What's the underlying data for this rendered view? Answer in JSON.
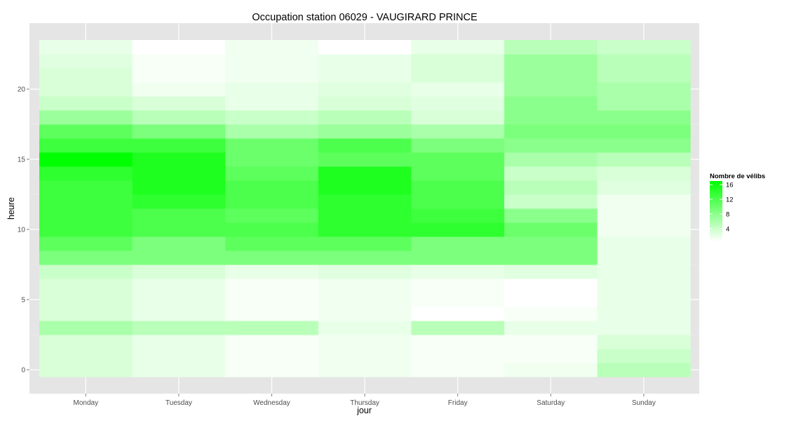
{
  "chart_data": {
    "type": "heatmap",
    "title": "Occupation station 06029 - VAUGIRARD PRINCE",
    "xlabel": "jour",
    "ylabel": "heure",
    "categories": [
      "Monday",
      "Tuesday",
      "Wednesday",
      "Thursday",
      "Friday",
      "Saturday",
      "Sunday"
    ],
    "y_ticks": [
      0,
      5,
      10,
      15,
      20
    ],
    "ylim": [
      -0.5,
      23.5
    ],
    "grid": true,
    "colors": {
      "low": "#ffffff",
      "high": "#00ff00",
      "panel": "#e5e5e5",
      "grid": "#ffffff"
    },
    "legend": {
      "title": "Nombre de vélibs",
      "position": "right",
      "min": 0.5,
      "max": 17,
      "breaks": [
        16,
        12,
        8,
        4
      ]
    },
    "hours": [
      0,
      1,
      2,
      3,
      4,
      5,
      6,
      7,
      8,
      9,
      10,
      11,
      12,
      13,
      14,
      15,
      16,
      17,
      18,
      19,
      20,
      21,
      22,
      23
    ],
    "values": [
      [
        3,
        2,
        1,
        1.5,
        1,
        1.5,
        5
      ],
      [
        3,
        2,
        1,
        1.5,
        1,
        1,
        4
      ],
      [
        3,
        2,
        1,
        1.5,
        1,
        1,
        3
      ],
      [
        6,
        5,
        5,
        2,
        5,
        2,
        2
      ],
      [
        3,
        2,
        1,
        1.5,
        0.5,
        1,
        2
      ],
      [
        3,
        2,
        1,
        1.5,
        1,
        0.5,
        2
      ],
      [
        3,
        2,
        1,
        1.5,
        1,
        0.5,
        2
      ],
      [
        4,
        3,
        2,
        2.5,
        2,
        2.5,
        2
      ],
      [
        9,
        9,
        9,
        9,
        9,
        9,
        2
      ],
      [
        11,
        9,
        11,
        11,
        9,
        9,
        2
      ],
      [
        13,
        12,
        12,
        14,
        14,
        10,
        1.5
      ],
      [
        13,
        12,
        11,
        14,
        13,
        8,
        1.5
      ],
      [
        13,
        14,
        12,
        14,
        12,
        4,
        1.5
      ],
      [
        13,
        15,
        12,
        15,
        12,
        5,
        2.5
      ],
      [
        14,
        15,
        11,
        15,
        11,
        4,
        3
      ],
      [
        17,
        15,
        10,
        11,
        11,
        6,
        5
      ],
      [
        13,
        13,
        10,
        12,
        9,
        8,
        8
      ],
      [
        11,
        9,
        6,
        7,
        6,
        9,
        9
      ],
      [
        7,
        5,
        4,
        5,
        3,
        8,
        8
      ],
      [
        4,
        3,
        2,
        3,
        2.5,
        8,
        6
      ],
      [
        3,
        1.5,
        2,
        2.5,
        2,
        7,
        6
      ],
      [
        3,
        1,
        1.5,
        2,
        3,
        7,
        5
      ],
      [
        2.5,
        1,
        1.5,
        2,
        3,
        7,
        5
      ],
      [
        2,
        0.5,
        1.5,
        0.5,
        2,
        5,
        4
      ]
    ]
  }
}
